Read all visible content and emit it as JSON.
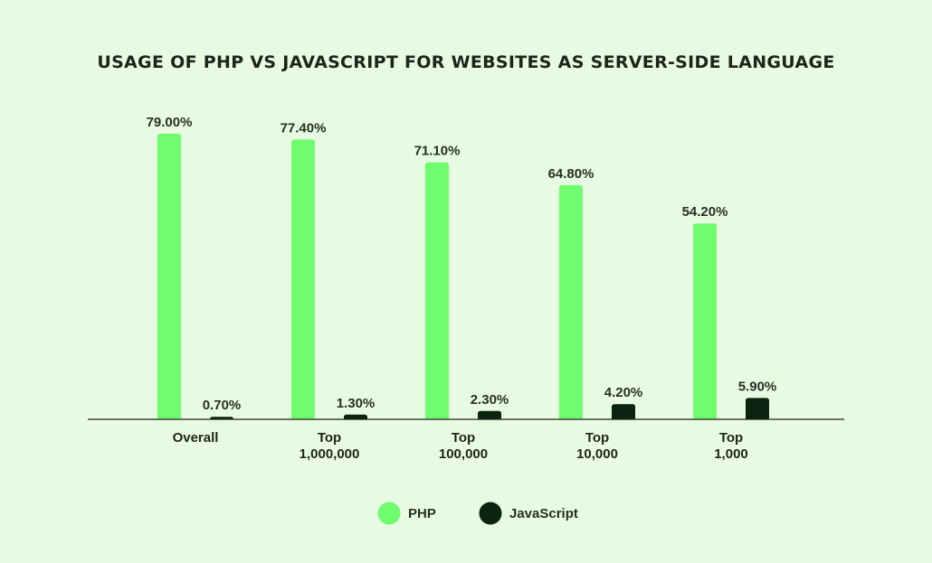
{
  "chart_data": {
    "type": "bar",
    "title": "USAGE OF PHP VS JAVASCRIPT FOR WEBSITES AS SERVER-SIDE LANGUAGE",
    "xlabel": "",
    "ylabel": "",
    "categories": [
      [
        "Overall"
      ],
      [
        "Top",
        "1,000,000"
      ],
      [
        "Top",
        "100,000"
      ],
      [
        "Top",
        "10,000"
      ],
      [
        "Top",
        "1,000"
      ]
    ],
    "series": [
      {
        "name": "PHP",
        "color": "#6ffc6e",
        "values": [
          79.0,
          77.4,
          71.1,
          64.8,
          54.2
        ],
        "labels": [
          "79.00%",
          "77.40%",
          "71.10%",
          "64.80%",
          "54.20%"
        ]
      },
      {
        "name": "JavaScript",
        "color": "#0a2410",
        "values": [
          0.7,
          1.3,
          2.3,
          4.2,
          5.9
        ],
        "labels": [
          "0.70%",
          "1.30%",
          "2.30%",
          "4.20%",
          "5.90%"
        ]
      }
    ],
    "ylim": [
      0,
      100
    ],
    "grid": false,
    "legend": "bottom-center"
  }
}
